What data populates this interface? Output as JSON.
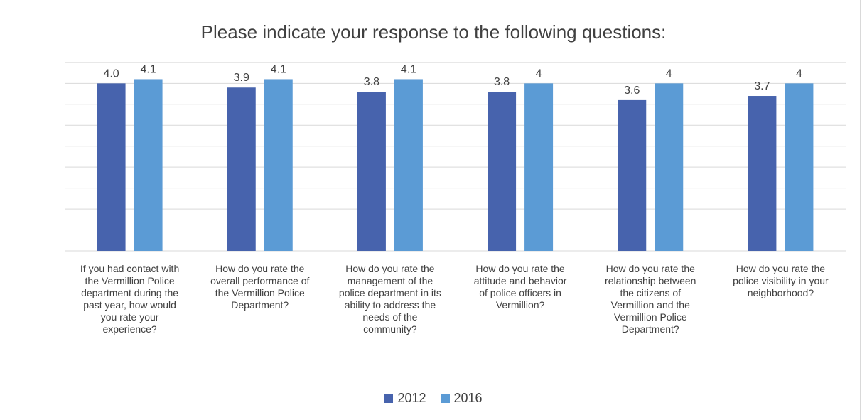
{
  "chart_data": {
    "type": "bar",
    "title": "Please indicate your response to the following questions:",
    "categories": [
      "If you had contact with the Vermillion Police department during the past year, how would you rate your experience?",
      "How do you rate the overall performance of the Vermillion Police Department?",
      "How do you rate the management of the police department in its ability to address the needs of the community?",
      "How do you rate the attitude and behavior of police officers in Vermillion?",
      "How do you rate the relationship between the citizens of Vermillion and the Vermillion Police Department?",
      "How do you rate the police visibility in your neighborhood?"
    ],
    "category_lines": [
      [
        "If you had contact with",
        "the Vermillion Police",
        "department during the",
        "past year, how would",
        "you rate your",
        "experience?"
      ],
      [
        "How do you rate the",
        "overall performance of",
        "the Vermillion Police",
        "Department?"
      ],
      [
        "How do you rate the",
        "management of the",
        "police department in its",
        "ability to address the",
        "needs of the",
        "community?"
      ],
      [
        "How do you rate the",
        "attitude and behavior",
        "of police officers in",
        "Vermillion?"
      ],
      [
        "How do you rate the",
        "relationship between",
        "the citizens of",
        "Vermillion and the",
        "Vermillion Police",
        "Department?"
      ],
      [
        "How do you rate the",
        "police visibility in your",
        "neighborhood?"
      ]
    ],
    "series": [
      {
        "name": "2012",
        "color": "#4763ad",
        "values": [
          4.0,
          3.9,
          3.8,
          3.8,
          3.6,
          3.7
        ],
        "labels": [
          "4.0",
          "3.9",
          "3.8",
          "3.8",
          "3.6",
          "3.7"
        ]
      },
      {
        "name": "2016",
        "color": "#5b9bd5",
        "values": [
          4.1,
          4.1,
          4.1,
          4.0,
          4.0,
          4.0
        ],
        "labels": [
          "4.1",
          "4.1",
          "4.1",
          "4",
          "4",
          "4"
        ]
      }
    ],
    "ylim": [
      0,
      4.6
    ],
    "grid": true,
    "legend_position": "bottom"
  }
}
